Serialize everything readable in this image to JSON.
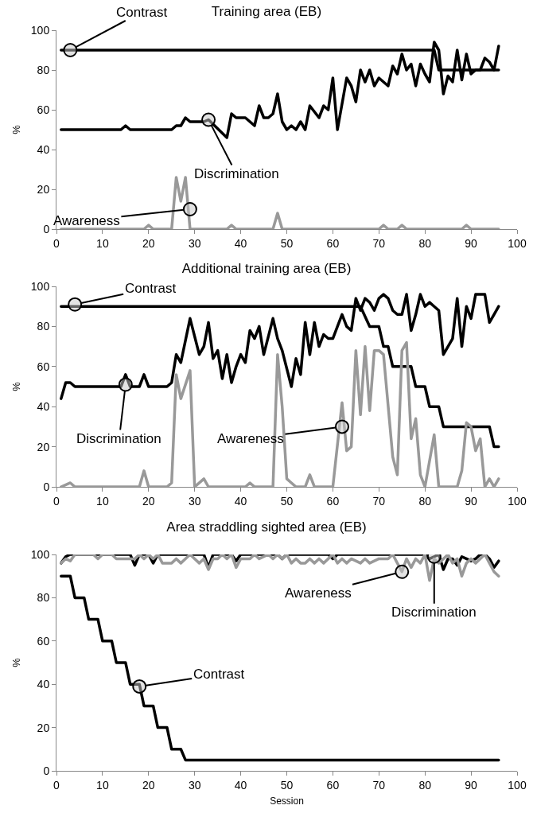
{
  "chart_data": [
    {
      "type": "line",
      "title": "Training area (EB)",
      "ylabel": "%",
      "xlim": [
        0,
        100
      ],
      "xticks": [
        0,
        10,
        20,
        30,
        40,
        50,
        60,
        70,
        80,
        90,
        100
      ],
      "ylim": [
        0,
        100
      ],
      "yticks": [
        0,
        20,
        40,
        60,
        80,
        100
      ],
      "grid": false,
      "marker": "none",
      "line_style": "solid",
      "series": [
        {
          "color": "#000000",
          "x": [
            1,
            82,
            83,
            96
          ],
          "values": [
            90,
            90,
            80,
            80
          ]
        },
        {
          "color": "#000000",
          "x": [
            1,
            14,
            15,
            16,
            25,
            26,
            27,
            28,
            29,
            32,
            33,
            37,
            38,
            39,
            41,
            43,
            44,
            45,
            46,
            47,
            48,
            49,
            50,
            51,
            52,
            53,
            54,
            55,
            57,
            58,
            59,
            60,
            61,
            63,
            64,
            65,
            66,
            67,
            68,
            69,
            70,
            71,
            72,
            73,
            74,
            75,
            76,
            77,
            78,
            79,
            80,
            81,
            82,
            83,
            84,
            85,
            86,
            87,
            88,
            89,
            90,
            91,
            92,
            93,
            94,
            95,
            96
          ],
          "values": [
            50,
            50,
            52,
            50,
            50,
            52,
            52,
            56,
            54,
            54,
            55,
            46,
            58,
            56,
            56,
            52,
            62,
            56,
            56,
            58,
            68,
            54,
            50,
            52,
            50,
            54,
            50,
            62,
            56,
            62,
            60,
            76,
            50,
            76,
            72,
            64,
            80,
            74,
            80,
            72,
            76,
            74,
            72,
            82,
            78,
            88,
            80,
            83,
            72,
            83,
            78,
            74,
            94,
            90,
            68,
            77,
            74,
            90,
            75,
            88,
            78,
            80,
            80,
            86,
            84,
            80,
            92
          ]
        },
        {
          "color": "#999999",
          "x": [
            1,
            19,
            20,
            21,
            25,
            26,
            27,
            28,
            29,
            37,
            38,
            39,
            47,
            48,
            49,
            70,
            71,
            72,
            74,
            75,
            76,
            88,
            89,
            90,
            96
          ],
          "values": [
            0,
            0,
            2,
            0,
            0,
            26,
            14,
            26,
            0,
            0,
            2,
            0,
            0,
            8,
            0,
            0,
            2,
            0,
            0,
            2,
            0,
            0,
            2,
            0,
            0
          ]
        }
      ],
      "annotations": [
        {
          "text": "Contrast",
          "x": 3,
          "y": 90
        },
        {
          "text": "Discrimination",
          "x": 33,
          "y": 55
        },
        {
          "text": "Awareness",
          "x": 29,
          "y": 10
        }
      ]
    },
    {
      "type": "line",
      "title": "Additional training area (EB)",
      "ylabel": "%",
      "xlim": [
        0,
        100
      ],
      "xticks": [
        0,
        10,
        20,
        30,
        40,
        50,
        60,
        70,
        80,
        90,
        100
      ],
      "ylim": [
        0,
        100
      ],
      "yticks": [
        0,
        20,
        40,
        60,
        80,
        100
      ],
      "grid": false,
      "marker": "none",
      "line_style": "solid",
      "series": [
        {
          "color": "#000000",
          "x": [
            1,
            66,
            68,
            70,
            71,
            72,
            73,
            77,
            78,
            80,
            81,
            83,
            84,
            94,
            95,
            96
          ],
          "values": [
            90,
            90,
            80,
            80,
            70,
            70,
            60,
            60,
            50,
            50,
            40,
            40,
            30,
            30,
            20,
            20
          ]
        },
        {
          "color": "#000000",
          "x": [
            1,
            2,
            3,
            4,
            14,
            15,
            16,
            18,
            19,
            20,
            24,
            25,
            26,
            27,
            29,
            31,
            32,
            33,
            34,
            35,
            36,
            37,
            38,
            39,
            40,
            41,
            42,
            43,
            44,
            45,
            47,
            48,
            49,
            51,
            52,
            53,
            54,
            55,
            56,
            57,
            58,
            59,
            60,
            61,
            62,
            63,
            64,
            65,
            66,
            67,
            68,
            69,
            70,
            71,
            72,
            73,
            74,
            75,
            76,
            77,
            78,
            79,
            80,
            81,
            82,
            83,
            84,
            85,
            86,
            87,
            88,
            89,
            90,
            91,
            93,
            94,
            95,
            96
          ],
          "values": [
            44,
            52,
            52,
            50,
            50,
            56,
            50,
            50,
            56,
            50,
            50,
            52,
            66,
            62,
            84,
            66,
            70,
            82,
            64,
            68,
            54,
            66,
            52,
            60,
            66,
            62,
            78,
            74,
            80,
            66,
            84,
            74,
            68,
            50,
            64,
            56,
            82,
            66,
            82,
            70,
            76,
            74,
            74,
            80,
            86,
            80,
            78,
            94,
            88,
            94,
            92,
            88,
            94,
            96,
            94,
            88,
            86,
            86,
            96,
            78,
            86,
            96,
            90,
            92,
            90,
            88,
            66,
            70,
            74,
            94,
            70,
            90,
            84,
            96,
            96,
            82,
            86,
            90
          ]
        },
        {
          "color": "#999999",
          "x": [
            1,
            3,
            4,
            18,
            19,
            20,
            24,
            25,
            26,
            27,
            29,
            30,
            32,
            33,
            41,
            42,
            43,
            47,
            48,
            49,
            50,
            51,
            52,
            54,
            55,
            56,
            60,
            62,
            63,
            64,
            65,
            66,
            67,
            68,
            69,
            70,
            71,
            73,
            74,
            75,
            76,
            77,
            78,
            79,
            80,
            82,
            83,
            87,
            88,
            89,
            90,
            91,
            92,
            93,
            94,
            95,
            96
          ],
          "values": [
            0,
            2,
            0,
            0,
            8,
            0,
            0,
            2,
            56,
            44,
            58,
            0,
            4,
            0,
            0,
            2,
            0,
            0,
            66,
            40,
            4,
            2,
            0,
            0,
            6,
            0,
            0,
            42,
            18,
            20,
            68,
            36,
            70,
            38,
            68,
            68,
            66,
            15,
            6,
            68,
            72,
            24,
            34,
            6,
            0,
            26,
            0,
            0,
            8,
            32,
            30,
            18,
            24,
            0,
            4,
            0,
            4
          ]
        }
      ],
      "annotations": [
        {
          "text": "Contrast",
          "x": 4,
          "y": 91
        },
        {
          "text": "Discrimination",
          "x": 15,
          "y": 51
        },
        {
          "text": "Awareness",
          "x": 62,
          "y": 30
        }
      ]
    },
    {
      "type": "line",
      "title": "Area straddling sighted area (EB)",
      "xlabel": "Session",
      "ylabel": "%",
      "xlim": [
        0,
        100
      ],
      "xticks": [
        0,
        10,
        20,
        30,
        40,
        50,
        60,
        70,
        80,
        90,
        100
      ],
      "ylim": [
        0,
        100
      ],
      "yticks": [
        0,
        20,
        40,
        60,
        80,
        100
      ],
      "grid": false,
      "marker": "none",
      "line_style": "solid",
      "series": [
        {
          "color": "#000000",
          "x": [
            1,
            3,
            4,
            6,
            7,
            9,
            10,
            12,
            13,
            15,
            16,
            18,
            19,
            21,
            22,
            24,
            25,
            27,
            28,
            96
          ],
          "values": [
            90,
            90,
            80,
            80,
            70,
            70,
            60,
            60,
            50,
            50,
            40,
            40,
            30,
            30,
            20,
            20,
            10,
            10,
            5,
            5
          ]
        },
        {
          "color": "#000000",
          "x": [
            1,
            2,
            3,
            16,
            17,
            18,
            20,
            21,
            22,
            32,
            33,
            34,
            38,
            39,
            40,
            48,
            49,
            50,
            59,
            60,
            61,
            80,
            81,
            82,
            83,
            84,
            85,
            86,
            87,
            88,
            89,
            90,
            91,
            92,
            93,
            94,
            95,
            96
          ],
          "values": [
            96,
            99,
            100,
            100,
            95,
            100,
            100,
            96,
            100,
            100,
            94,
            100,
            100,
            97,
            100,
            100,
            98,
            100,
            100,
            98,
            100,
            100,
            98,
            99,
            100,
            93,
            98,
            98,
            95,
            99,
            98,
            97,
            98,
            100,
            100,
            98,
            94,
            97
          ]
        },
        {
          "color": "#999999",
          "x": [
            1,
            2,
            3,
            4,
            8,
            9,
            10,
            12,
            13,
            17,
            18,
            19,
            20,
            21,
            22,
            23,
            25,
            26,
            27,
            28,
            29,
            30,
            31,
            32,
            33,
            34,
            35,
            36,
            37,
            38,
            39,
            40,
            42,
            43,
            44,
            46,
            47,
            48,
            49,
            50,
            51,
            52,
            53,
            54,
            55,
            56,
            57,
            58,
            60,
            61,
            62,
            63,
            64,
            66,
            67,
            68,
            70,
            72,
            73,
            74,
            75,
            76,
            77,
            78,
            79,
            80,
            81,
            82,
            83,
            84,
            85,
            86,
            87,
            88,
            89,
            90,
            91,
            92,
            93,
            94,
            95,
            96
          ],
          "values": [
            96,
            98,
            97,
            100,
            100,
            98,
            100,
            100,
            98,
            98,
            100,
            98,
            100,
            98,
            100,
            96,
            96,
            98,
            96,
            98,
            100,
            98,
            96,
            98,
            93,
            98,
            98,
            100,
            98,
            100,
            94,
            98,
            98,
            100,
            98,
            100,
            98,
            100,
            98,
            100,
            96,
            98,
            96,
            96,
            98,
            96,
            98,
            96,
            100,
            96,
            98,
            96,
            98,
            96,
            98,
            96,
            98,
            98,
            100,
            96,
            92,
            98,
            94,
            98,
            96,
            100,
            88,
            98,
            96,
            98,
            100,
            96,
            98,
            90,
            96,
            98,
            96,
            98,
            100,
            96,
            92,
            90
          ]
        }
      ],
      "annotations": [
        {
          "text": "Contrast",
          "x": 18,
          "y": 39
        },
        {
          "text": "Awareness",
          "x": 75,
          "y": 92
        },
        {
          "text": "Discrimination",
          "x": 82,
          "y": 99
        }
      ]
    }
  ]
}
